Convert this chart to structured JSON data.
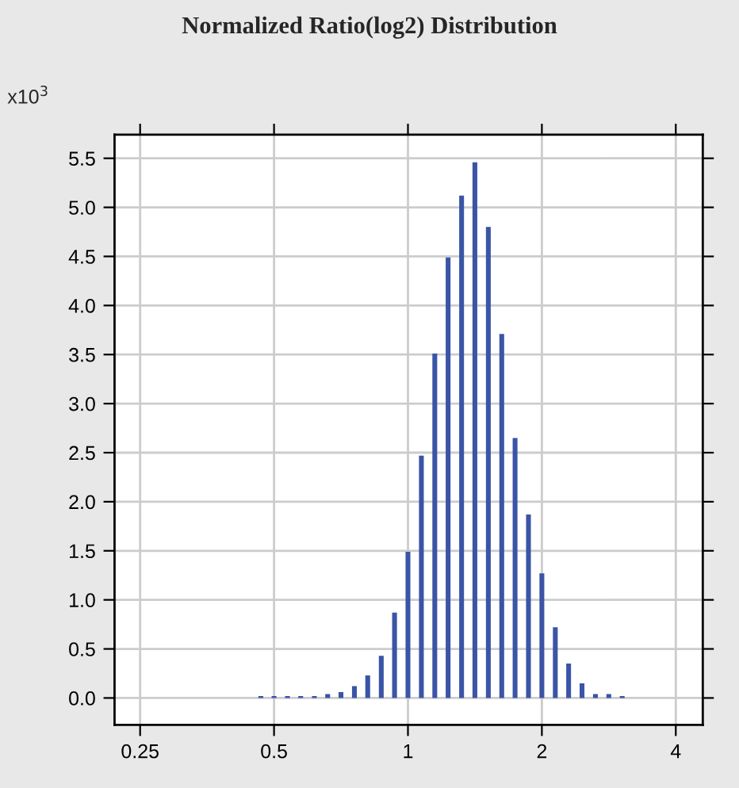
{
  "chart_data": {
    "type": "bar",
    "title": "Normalized Ratio(log2) Distribution",
    "ylabel": "x10$^{3}$",
    "x": [
      0.467,
      0.5,
      0.536,
      0.574,
      0.616,
      0.66,
      0.707,
      0.758,
      0.812,
      0.871,
      0.933,
      1,
      1.072,
      1.149,
      1.231,
      1.32,
      1.414,
      1.516,
      1.625,
      1.741,
      1.866,
      2,
      2.144,
      2.297,
      2.462,
      2.639,
      2.828,
      3.031
    ],
    "values": [
      0.02,
      0.02,
      0.02,
      0.02,
      0.02,
      0.04,
      0.06,
      0.12,
      0.23,
      0.43,
      0.87,
      1.49,
      2.47,
      3.51,
      4.49,
      5.12,
      5.46,
      4.8,
      3.71,
      2.65,
      1.87,
      1.27,
      0.72,
      0.35,
      0.15,
      0.04,
      0.04,
      0.02
    ],
    "color": "#3a54a6",
    "log": "x",
    "xlim": [
      0.219,
      4.6
    ],
    "ylim": [
      -0.275,
      5.74
    ],
    "xticks": [
      0.25,
      0.5,
      1,
      2,
      4
    ],
    "yticks": [
      {
        "value": 0,
        "label": "0.0"
      },
      {
        "value": 0.5,
        "label": "0.5"
      },
      {
        "value": 1,
        "label": "1.0"
      },
      {
        "value": 1.5,
        "label": "1.5"
      },
      {
        "value": 2,
        "label": "2.0"
      },
      {
        "value": 2.5,
        "label": "2.5"
      },
      {
        "value": 3,
        "label": "3.0"
      },
      {
        "value": 3.5,
        "label": "3.5"
      },
      {
        "value": 4,
        "label": "4.0"
      },
      {
        "value": 4.5,
        "label": "4.5"
      },
      {
        "value": 5,
        "label": "5.0"
      },
      {
        "value": 5.5,
        "label": "5.5"
      }
    ],
    "grid": true
  }
}
